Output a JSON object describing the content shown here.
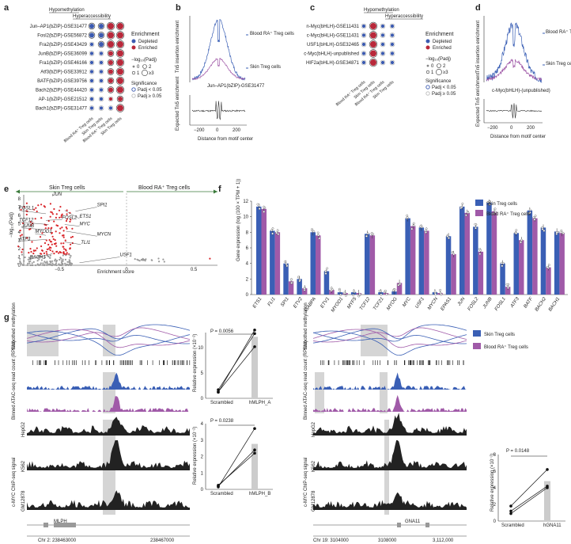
{
  "colors": {
    "skin": "#3a5fb5",
    "blood": "#a05aa8",
    "depleted": "#3b5ab0",
    "enriched": "#b8283a",
    "red_points": "#d9262b",
    "grey_points": "#9a9a9a"
  },
  "panels": [
    "a",
    "b",
    "c",
    "d",
    "e",
    "f",
    "g"
  ],
  "panel_a": {
    "header_hypo": "Hypomethylation",
    "header_hyper": "Hyperaccessibility",
    "rows": [
      {
        "label": "Jun–AP1(bZIP)-GSE31477",
        "d": [
          0,
          0,
          1,
          1
        ],
        "s": [
          2,
          2,
          3,
          3
        ]
      },
      {
        "label": "Fosl2(bZIP)-GSE56872",
        "d": [
          0,
          0,
          1,
          1
        ],
        "s": [
          2,
          2,
          3,
          3
        ]
      },
      {
        "label": "Fra2(bZIP)-GSE43429",
        "d": [
          0,
          0,
          1,
          1
        ],
        "s": [
          1,
          2,
          3,
          3
        ]
      },
      {
        "label": "JunB(bZIP)-GSE36099",
        "d": [
          0,
          0,
          1,
          1
        ],
        "s": [
          1,
          1,
          2,
          3
        ]
      },
      {
        "label": "Fra1(bZIP)-GSE46166",
        "d": [
          0,
          0,
          1,
          1
        ],
        "s": [
          1,
          1,
          2,
          3
        ]
      },
      {
        "label": "Atf3(bZIP)-GSE33912",
        "d": [
          0,
          0,
          1,
          1
        ],
        "s": [
          1,
          1,
          2,
          3
        ]
      },
      {
        "label": "BATF(bZIP)-GSE39756",
        "d": [
          0,
          0,
          1,
          1
        ],
        "s": [
          1,
          1,
          2,
          3
        ]
      },
      {
        "label": "Bach2(bZIP)-GSE44420",
        "d": [
          0,
          0,
          1,
          1
        ],
        "s": [
          1,
          1,
          2,
          3
        ]
      },
      {
        "label": "AP-1(bZIP)-GSE21512",
        "d": [
          0,
          0,
          1,
          1
        ],
        "s": [
          1,
          1,
          1,
          2
        ]
      },
      {
        "label": "Bach1(bZIP)-GSE31477",
        "d": [
          0,
          0,
          0,
          1
        ],
        "s": [
          1,
          1,
          1,
          3
        ]
      }
    ],
    "columns": [
      "Blood RA⁺ Treg cells",
      "Skin Treg cells",
      "Blood RA⁺ Treg cells",
      "Skin Treg cells"
    ]
  },
  "legend_ac": {
    "enrichment_title": "Enrichment",
    "depleted": "Depleted",
    "enriched": "Enriched",
    "logp_title": "−log₁₀(Padj)",
    "sizes": [
      "0",
      "1",
      "2",
      "≥3"
    ],
    "significance_title": "Significance",
    "sig": "Padj < 0.05",
    "nonsig": "Padj ≥ 0.05"
  },
  "panel_b": {
    "ylabel_top": "Tn5 insertion enrichment",
    "ylabel_bottom": "Expected Tn5 enrichment",
    "legend_blood": "Blood RA⁺ Treg cells",
    "legend_skin": "Skin Treg cells",
    "motif": "Jun–AP1(bZIP)-GSE31477",
    "xlabel": "Distance from motif center",
    "xticks": [
      "−200",
      "0",
      "200"
    ]
  },
  "panel_c": {
    "rows": [
      {
        "label": "n-Myc(bHLH)-GSE11431",
        "d": [
          0,
          1,
          0,
          0
        ],
        "s": [
          1,
          3,
          1,
          1
        ]
      },
      {
        "label": "c-Myc(bHLH)-GSE11431",
        "d": [
          0,
          1,
          0,
          0
        ],
        "s": [
          1,
          3,
          1,
          1
        ]
      },
      {
        "label": "USF1(bHLH)-GSE32465",
        "d": [
          0,
          1,
          0,
          0
        ],
        "s": [
          1,
          3,
          1,
          1
        ]
      },
      {
        "label": "c-Myc(bHLH)-unpublished",
        "d": [
          0,
          1,
          0,
          0
        ],
        "s": [
          1,
          3,
          1,
          1
        ]
      },
      {
        "label": "HIF2a(bHLH)-GSE34871",
        "d": [
          0,
          1,
          0,
          0
        ],
        "s": [
          1,
          3,
          1,
          1
        ]
      }
    ]
  },
  "panel_d": {
    "motif": "c-Myc(bHLH)-(unpublished)",
    "xticks": [
      "−200",
      "0",
      "200"
    ],
    "xlabel": "Distance from motif center"
  },
  "panel_e": {
    "skin_label": "Skin Treg cells",
    "blood_label": "Blood RA⁺ Treg cells",
    "ylabel": "−log₁₀(Padj)",
    "xlabel": "Enrichment score",
    "xticks": [
      "−0.5",
      "0",
      "0.5"
    ],
    "yticks": [
      "0",
      "1",
      "2",
      "3",
      "4",
      "5",
      "6",
      "7",
      "8"
    ],
    "genes": [
      "JUN",
      "SPI1",
      "FOSL1",
      "ETS1",
      "TCF12",
      "FOSL2",
      "JUNB",
      "MYC",
      "MYOD1",
      "MYCN",
      "ATF3",
      "TLI1",
      "BACH1",
      "USF1"
    ]
  },
  "panel_f": {
    "ylabel": "Gene expression (log (100 × TPM + 1))",
    "legend_skin": "Skin Treg cells",
    "legend_blood": "Blood RA⁺ Treg cells",
    "yticks": [
      "0",
      "2",
      "4",
      "6",
      "8",
      "10",
      "12"
    ],
    "chart_data": {
      "type": "bar",
      "categories": [
        "ETS1",
        "FLI1",
        "SPI1",
        "ETV2",
        "GABPA",
        "ETV1",
        "MYOD1",
        "MYF5",
        "TCF12",
        "TCF21",
        "MYOG",
        "MYC",
        "USF1",
        "MYCN",
        "EPAS1",
        "JUN",
        "FOSL2",
        "JUNB",
        "FOSL1",
        "ATF3",
        "BATF",
        "BACH2",
        "BACH1"
      ],
      "series": [
        {
          "name": "Skin Treg cells",
          "values": [
            11.3,
            8.2,
            4.0,
            2.0,
            8.0,
            3.0,
            0.3,
            0.3,
            7.8,
            0.3,
            0.4,
            9.8,
            8.6,
            0.3,
            7.5,
            11.3,
            8.7,
            11.8,
            4.0,
            7.9,
            10.8,
            8.6,
            8.1
          ]
        },
        {
          "name": "Blood RA⁺ Treg cells",
          "values": [
            11.0,
            8.0,
            1.7,
            0.8,
            7.6,
            0.6,
            0.2,
            0.2,
            7.6,
            0.2,
            1.5,
            8.8,
            8.2,
            0.2,
            5.2,
            10.5,
            5.5,
            10.7,
            1.0,
            7.0,
            9.8,
            3.5,
            7.9
          ]
        }
      ],
      "ylim": [
        0,
        12
      ]
    }
  },
  "panel_g": {
    "smoothed": "Smoothed methylation",
    "atac": "Binned ATAC-seq read count (RPKM)",
    "chip": "c-MYC ChIP-seq signal",
    "cells": [
      "HepG2",
      "K562",
      "GM12878"
    ],
    "left_chr": "Chr 2: 238463000",
    "left_end": "238467000",
    "left_gene": "MLPH",
    "right_chr": "Chr 19: 3104000",
    "right_mid": "3108000",
    "right_end": "3,112,000",
    "right_gene": "GNA11",
    "legend_skin": "Skin Treg cells",
    "legend_blood": "Blood RA⁺ Treg cells",
    "bar1": {
      "p": "P = 0.0056",
      "ylabel": "Relative expression (×10⁻²)",
      "cats": [
        "Scrambled",
        "hMLPH_A"
      ],
      "yticks": [
        "0",
        "5",
        "10"
      ]
    },
    "bar2": {
      "p": "P = 0.0238",
      "ylabel": "Relative expression (×10⁻²)",
      "cats": [
        "Scrambled",
        "hMLPH_B"
      ],
      "yticks": [
        "0",
        "1",
        "2",
        "3",
        "4"
      ]
    },
    "bar3": {
      "p": "P = 0.0148",
      "ylabel": "Relative expression (×10⁻²)",
      "cats": [
        "Scrambled",
        "hGNA11"
      ],
      "yticks": [
        "0",
        "2",
        "4",
        "6",
        "8"
      ]
    }
  }
}
